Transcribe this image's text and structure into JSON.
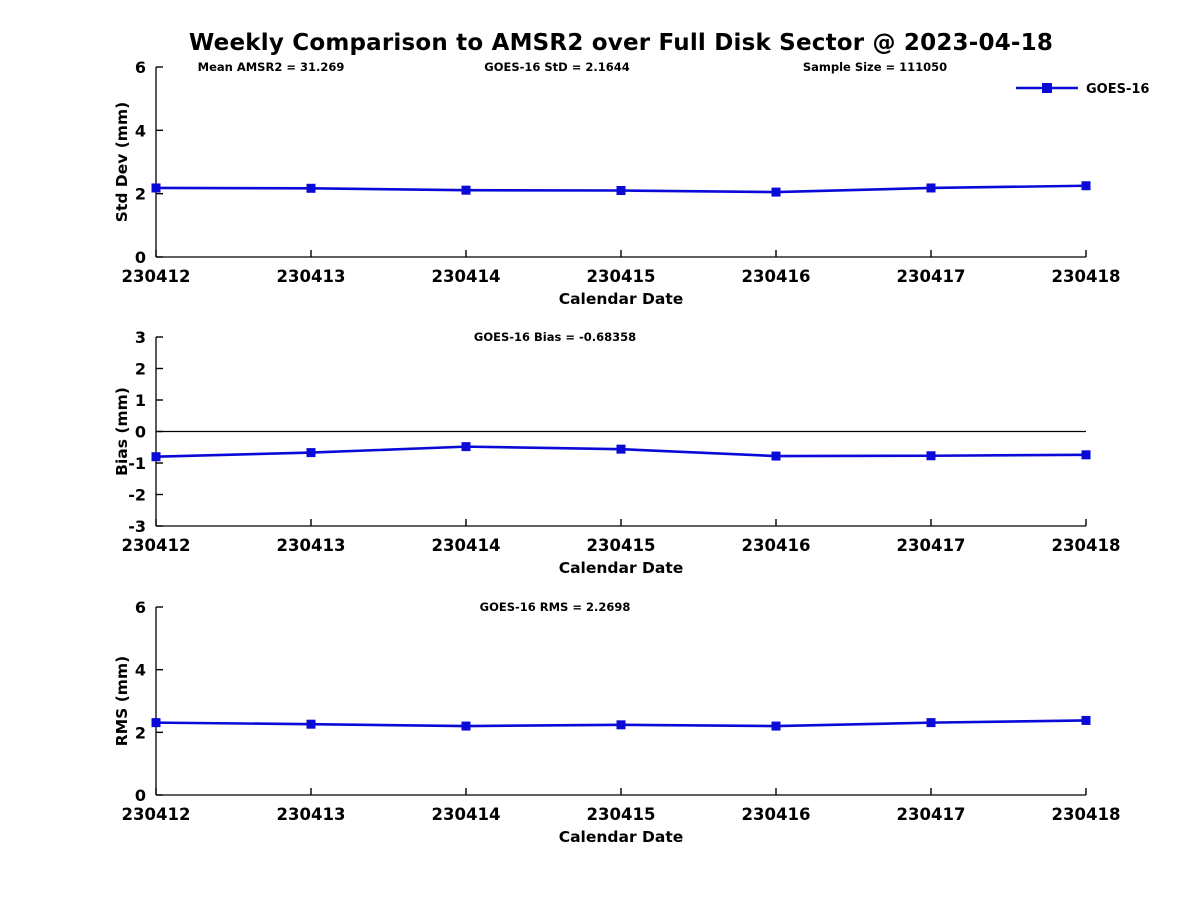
{
  "figure": {
    "title": "Weekly Comparison to AMSR2 over Full Disk Sector @ 2023-04-18",
    "background": "#ffffff",
    "legend": {
      "label": "GOES-16",
      "position": "top-right"
    }
  },
  "colors": {
    "line": "#0a0ad8",
    "axis": "#000000",
    "text": "#000000"
  },
  "chart_data": [
    {
      "type": "line",
      "series": [
        {
          "name": "GOES-16",
          "values": [
            2.18,
            2.17,
            2.11,
            2.1,
            2.05,
            2.18,
            2.25
          ]
        }
      ],
      "categories": [
        "230412",
        "230413",
        "230414",
        "230415",
        "230416",
        "230417",
        "230418"
      ],
      "xlabel": "Calendar Date",
      "ylabel": "Std Dev (mm)",
      "ylim": [
        0,
        6
      ],
      "yticks": [
        0,
        2,
        4,
        6
      ],
      "grid": false,
      "zero_line": false,
      "annotations": [
        "Mean AMSR2 = 31.269",
        "GOES-16 StD = 2.1644",
        "Sample Size = 111050"
      ],
      "marker": "square"
    },
    {
      "type": "line",
      "series": [
        {
          "name": "GOES-16",
          "values": [
            -0.8,
            -0.67,
            -0.48,
            -0.56,
            -0.78,
            -0.77,
            -0.74
          ]
        }
      ],
      "categories": [
        "230412",
        "230413",
        "230414",
        "230415",
        "230416",
        "230417",
        "230418"
      ],
      "xlabel": "Calendar Date",
      "ylabel": "Bias (mm)",
      "ylim": [
        -3,
        3
      ],
      "yticks": [
        -3,
        -2,
        -1,
        0,
        1,
        2,
        3
      ],
      "grid": false,
      "zero_line": true,
      "annotations": [
        "GOES-16 Bias  = -0.68358"
      ],
      "marker": "square"
    },
    {
      "type": "line",
      "series": [
        {
          "name": "GOES-16",
          "values": [
            2.31,
            2.26,
            2.2,
            2.24,
            2.2,
            2.31,
            2.38
          ]
        }
      ],
      "categories": [
        "230412",
        "230413",
        "230414",
        "230415",
        "230416",
        "230417",
        "230418"
      ],
      "xlabel": "Calendar Date",
      "ylabel": "RMS (mm)",
      "ylim": [
        0,
        6
      ],
      "yticks": [
        0,
        2,
        4,
        6
      ],
      "grid": false,
      "zero_line": false,
      "annotations": [
        "GOES-16 RMS = 2.2698"
      ],
      "marker": "square"
    }
  ]
}
